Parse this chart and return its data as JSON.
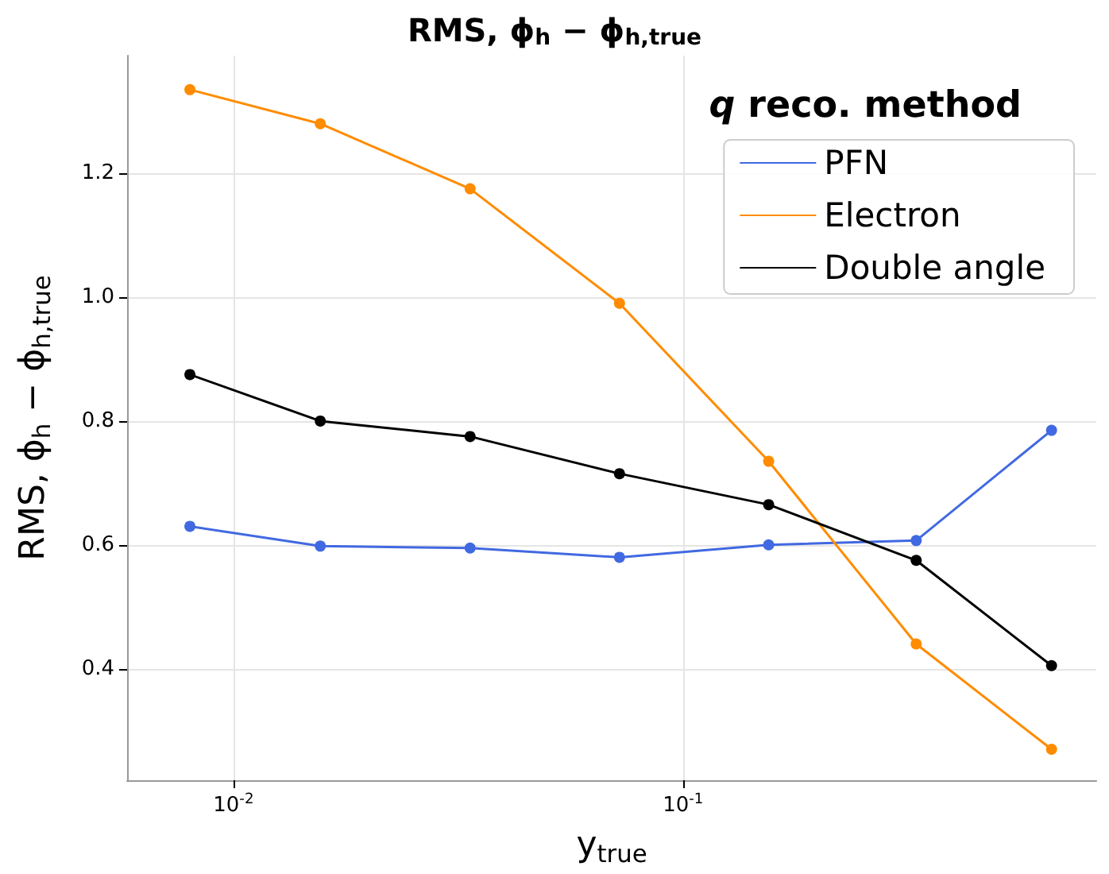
{
  "chart_data": {
    "type": "line",
    "title": "RMS, ϕ$_{h}$ − ϕ$_{h,true}$",
    "xlabel": "y$_{true}$",
    "ylabel": "RMS, ϕ$_{h}$ − ϕ$_{h,true}$",
    "legend_title": "q reco. method",
    "x": [
      0.008,
      0.0156,
      0.0336,
      0.0722,
      0.155,
      0.33,
      0.66
    ],
    "series": [
      {
        "name": "PFN",
        "color": "#4169e1",
        "values": [
          0.63,
          0.598,
          0.595,
          0.58,
          0.6,
          0.607,
          0.785
        ]
      },
      {
        "name": "Electron",
        "color": "#ff8c00",
        "values": [
          1.335,
          1.28,
          1.175,
          0.99,
          0.735,
          0.44,
          0.27
        ]
      },
      {
        "name": "Double angle",
        "color": "#000000",
        "values": [
          0.875,
          0.8,
          0.775,
          0.715,
          0.665,
          0.575,
          0.405
        ]
      }
    ],
    "log": "x",
    "xlim": [
      0.0058,
      0.83
    ],
    "xticks": [
      {
        "value": 0.01,
        "label": "10$^{-2}$"
      },
      {
        "value": 0.1,
        "label": "10$^{-1}$"
      }
    ],
    "ylim": [
      0.22,
      1.39
    ],
    "yticks": [
      0.4,
      0.6,
      0.8,
      {
        "value": 1,
        "label": "1.0"
      },
      1.2
    ],
    "grid": true,
    "legend": "top right",
    "marker": "circle",
    "line_style": "solid"
  }
}
